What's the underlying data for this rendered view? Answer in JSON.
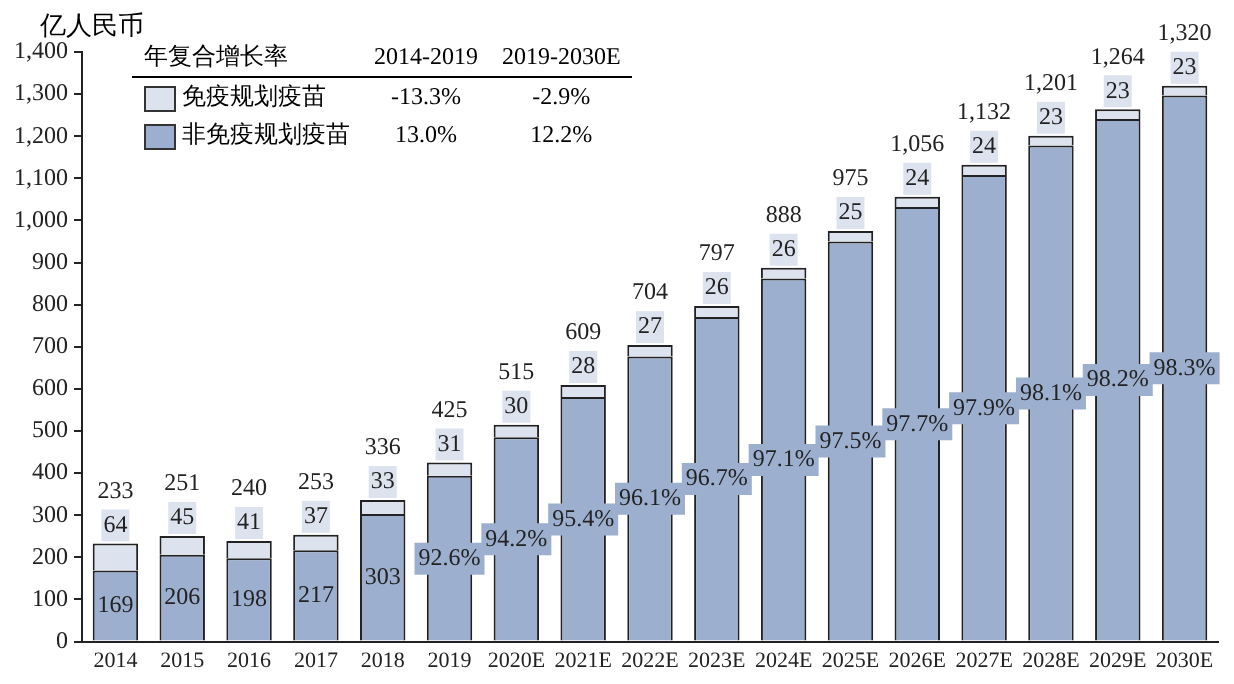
{
  "chart_data": {
    "type": "bar",
    "stacked": true,
    "ylabel": "亿人民币",
    "categories": [
      "2014",
      "2015",
      "2016",
      "2017",
      "2018",
      "2019",
      "2020E",
      "2021E",
      "2022E",
      "2023E",
      "2024E",
      "2025E",
      "2026E",
      "2027E",
      "2028E",
      "2029E",
      "2030E"
    ],
    "series": [
      {
        "name": "非免疫规划疫苗",
        "color": "#9dafcf",
        "values": [
          169,
          206,
          198,
          217,
          303,
          394,
          485,
          581,
          677,
          771,
          862,
          950,
          1032,
          1108,
          1178,
          1241,
          1297
        ],
        "value_labels": [
          "169",
          "206",
          "198",
          "217",
          "303",
          null,
          null,
          null,
          null,
          null,
          null,
          null,
          null,
          null,
          null,
          null,
          null
        ]
      },
      {
        "name": "免疫规划疫苗",
        "color": "#dde3ee",
        "values": [
          64,
          45,
          41,
          37,
          33,
          31,
          30,
          28,
          27,
          26,
          26,
          25,
          24,
          24,
          23,
          23,
          23
        ],
        "value_labels": [
          "64",
          "45",
          "41",
          "37",
          "33",
          "31",
          "30",
          "28",
          "27",
          "26",
          "26",
          "25",
          "24",
          "24",
          "23",
          "23",
          "23"
        ]
      }
    ],
    "totals": [
      "233",
      "251",
      "240",
      "253",
      "336",
      "425",
      "515",
      "609",
      "704",
      "797",
      "888",
      "975",
      "1,056",
      "1,132",
      "1,201",
      "1,264",
      "1,320"
    ],
    "ylim": [
      0,
      1400
    ],
    "yticks": [
      0,
      {
        "value": 100,
        "label": "100"
      },
      200,
      300,
      400,
      500,
      600,
      700,
      800,
      900,
      {
        "value": 1000,
        "label": "1,000"
      },
      {
        "value": 1100,
        "label": "1,100"
      },
      {
        "value": 1200,
        "label": "1,200"
      },
      {
        "value": 1300,
        "label": "1,300"
      },
      {
        "value": 1400,
        "label": "1,400"
      }
    ],
    "grid": false,
    "legend": "top left",
    "annotations": [
      "年复合增长率",
      "2014-2019",
      "2019-2030E",
      "-13.3%",
      "-2.9%",
      "13.0%",
      "12.2%",
      {
        "text": "92.6%",
        "x": "2019",
        "y": 197
      },
      {
        "text": "94.2%",
        "x": "2020E",
        "y": 243
      },
      {
        "text": "95.4%",
        "x": "2021E",
        "y": 290
      },
      {
        "text": "96.1%",
        "x": "2022E",
        "y": 339
      },
      {
        "text": "96.7%",
        "x": "2023E",
        "y": 386
      },
      {
        "text": "97.1%",
        "x": "2024E",
        "y": 431
      },
      {
        "text": "97.5%",
        "x": "2025E",
        "y": 475
      },
      {
        "text": "97.7%",
        "x": "2026E",
        "y": 516
      },
      {
        "text": "97.9%",
        "x": "2027E",
        "y": 554
      },
      {
        "text": "98.1%",
        "x": "2028E",
        "y": 589
      },
      {
        "text": "98.2%",
        "x": "2029E",
        "y": 621
      },
      {
        "text": "98.3%",
        "x": "2030E",
        "y": 649
      }
    ]
  }
}
